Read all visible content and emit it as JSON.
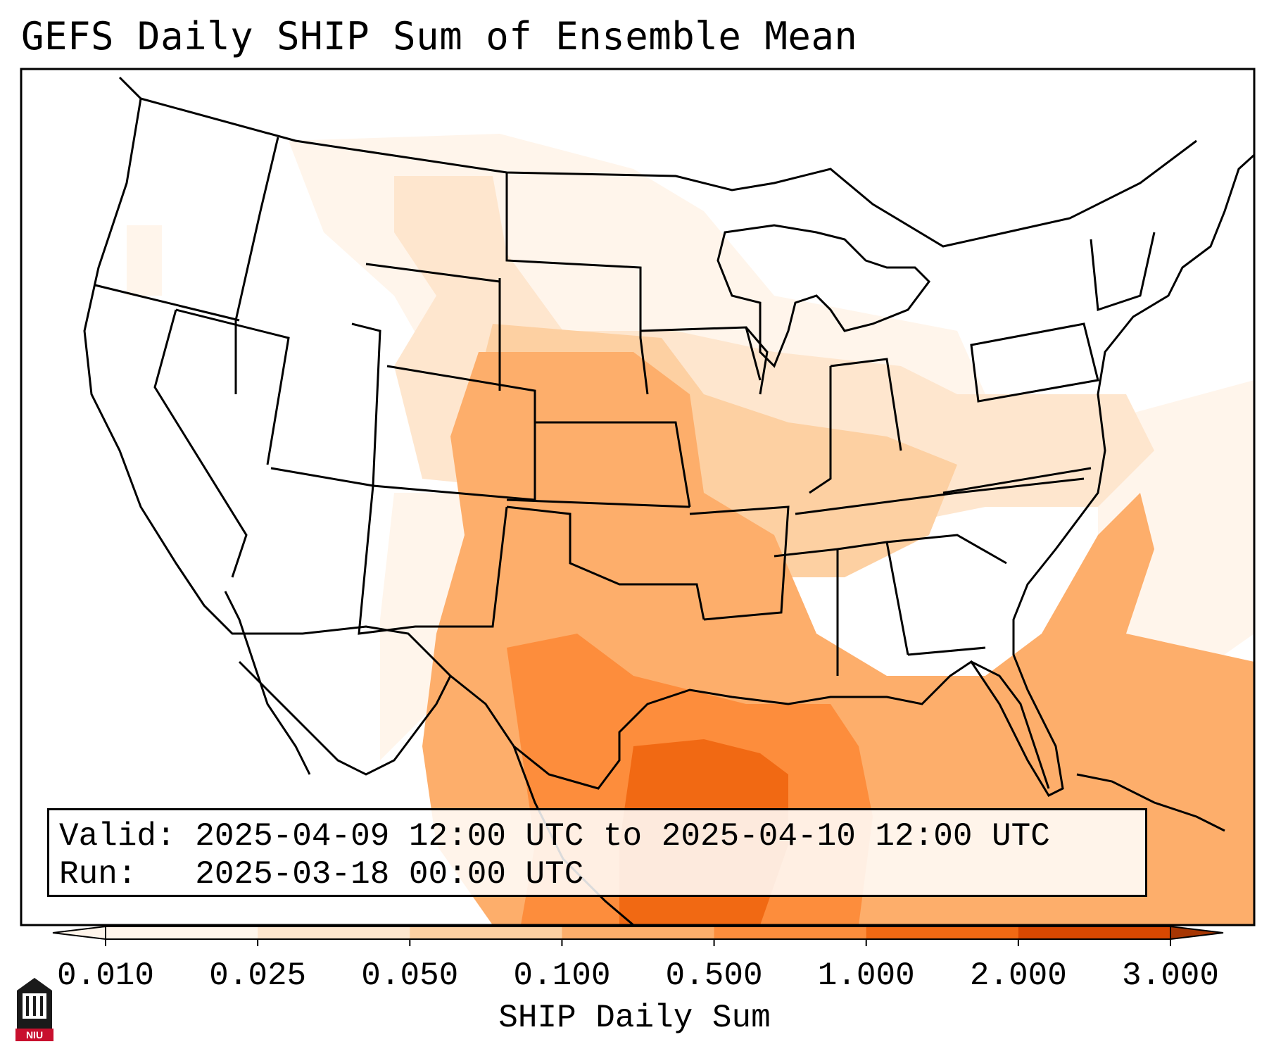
{
  "title": "GEFS Daily SHIP Sum of Ensemble Mean",
  "info": {
    "valid_label": "Valid:",
    "valid_value": "2025-04-09 12:00 UTC to 2025-04-10 12:00 UTC",
    "run_label": "Run:",
    "run_value": "2025-03-18 00:00 UTC"
  },
  "colorbar": {
    "label": "SHIP Daily Sum",
    "ticks": [
      "0.010",
      "0.025",
      "0.050",
      "0.100",
      "0.500",
      "1.000",
      "2.000",
      "3.000"
    ],
    "colors": [
      "#fff5eb",
      "#fee6ce",
      "#fdd0a2",
      "#fdae6b",
      "#fd8d3c",
      "#f16913",
      "#d94801",
      "#a63603"
    ],
    "extend": "both"
  },
  "logo": {
    "text": "NIU",
    "accent": "#c8102e"
  },
  "shading": [
    {
      "region": "gulf-of-mexico-core",
      "level": "1.000"
    },
    {
      "region": "south-texas-gulf",
      "level": "0.500"
    },
    {
      "region": "southern-plains-southeast-atlantic",
      "level": "0.100"
    },
    {
      "region": "lower-mississippi-southeast",
      "level": "0.050"
    },
    {
      "region": "ohio-valley-upper-midwest",
      "level": "0.025"
    },
    {
      "region": "northern-plains-northeast",
      "level": "0.010"
    }
  ]
}
